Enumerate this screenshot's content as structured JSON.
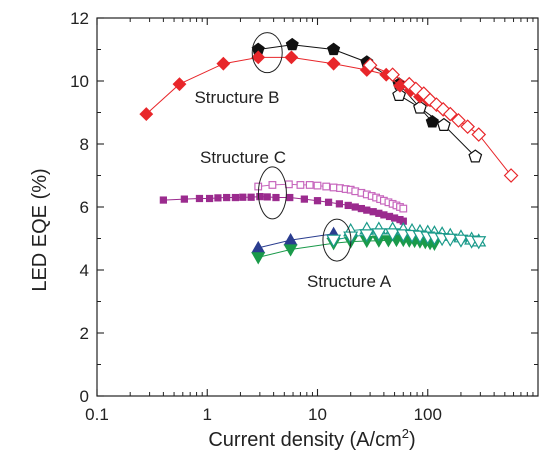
{
  "chart_data": {
    "type": "scatter",
    "title": "",
    "xlabel": "Current density (A/cm",
    "xlabel_superscript": "2",
    "xlabel_suffix": ")",
    "ylabel": "LED EQE (%)",
    "x_scale": "log",
    "xlim": [
      0.1,
      1000
    ],
    "ylim": [
      0,
      12
    ],
    "x_ticks": [
      0.1,
      1,
      10,
      100
    ],
    "x_tick_labels": [
      "0.1",
      "1",
      "10",
      "100"
    ],
    "y_ticks": [
      0,
      2,
      4,
      6,
      8,
      10,
      12
    ],
    "y_tick_labels": [
      "0",
      "2",
      "4",
      "6",
      "8",
      "10",
      "12"
    ],
    "grid": false,
    "legend": "none",
    "annotations": [
      {
        "text": "Structure B",
        "target_x": 3.5,
        "target_y": 10.9
      },
      {
        "text": "Structure C",
        "target_x": 3.9,
        "target_y": 6.45
      },
      {
        "text": "Structure A",
        "target_x": 15,
        "target_y": 4.95
      }
    ],
    "series": [
      {
        "marker": "pentagon",
        "filled": true,
        "color": "#111111",
        "x": [
          2.9,
          5.9,
          14,
          28,
          55,
          110
        ],
        "y": [
          11.0,
          11.15,
          11.0,
          10.6,
          9.9,
          8.7
        ]
      },
      {
        "marker": "pentagon",
        "filled": false,
        "color": "#111111",
        "x": [
          55,
          85,
          140,
          270
        ],
        "y": [
          9.55,
          9.15,
          8.6,
          7.6
        ]
      },
      {
        "marker": "diamond",
        "filled": true,
        "color": "#e8262a",
        "x": [
          0.28,
          0.56,
          1.4,
          2.9,
          5.8,
          14,
          28,
          42,
          56,
          70,
          85,
          100
        ],
        "y": [
          8.95,
          9.9,
          10.55,
          10.75,
          10.75,
          10.55,
          10.35,
          10.2,
          9.85,
          9.7,
          9.5,
          9.4
        ]
      },
      {
        "marker": "diamond",
        "filled": false,
        "color": "#e8262a",
        "x": [
          30,
          48,
          68,
          78,
          92,
          105,
          120,
          138,
          160,
          190,
          230,
          290,
          570
        ],
        "y": [
          10.5,
          10.2,
          9.9,
          9.75,
          9.6,
          9.4,
          9.25,
          9.1,
          8.95,
          8.75,
          8.55,
          8.3,
          7.0
        ]
      },
      {
        "marker": "square",
        "filled": true,
        "color": "#9b2b8e",
        "x": [
          0.4,
          0.62,
          0.85,
          1.05,
          1.25,
          1.5,
          1.8,
          2.1,
          2.5,
          3.0,
          3.5,
          4.2,
          5.6,
          7.6,
          10,
          12.6,
          15.8,
          19,
          22,
          25,
          28,
          32,
          36,
          40,
          45,
          50,
          56,
          60
        ],
        "y": [
          6.22,
          6.25,
          6.27,
          6.27,
          6.29,
          6.3,
          6.3,
          6.31,
          6.31,
          6.33,
          6.32,
          6.3,
          6.3,
          6.25,
          6.2,
          6.15,
          6.1,
          6.05,
          6.0,
          5.95,
          5.9,
          5.85,
          5.8,
          5.75,
          5.7,
          5.65,
          5.6,
          5.55
        ]
      },
      {
        "marker": "square",
        "filled": false,
        "color": "#c766bd",
        "x": [
          2.9,
          3.9,
          5.5,
          7.0,
          8.5,
          10,
          12,
          14,
          16,
          18,
          20,
          22,
          25,
          28,
          31,
          34,
          37,
          40,
          44,
          48,
          52,
          56,
          60
        ],
        "y": [
          6.65,
          6.7,
          6.72,
          6.7,
          6.7,
          6.68,
          6.65,
          6.62,
          6.6,
          6.57,
          6.55,
          6.5,
          6.45,
          6.4,
          6.35,
          6.3,
          6.25,
          6.2,
          6.15,
          6.1,
          6.05,
          6.0,
          5.95
        ]
      },
      {
        "marker": "triangle-up",
        "filled": true,
        "color": "#2a3d8f",
        "x": [
          2.9,
          5.7,
          14
        ],
        "y": [
          4.7,
          4.95,
          5.15
        ]
      },
      {
        "marker": "triangle-down",
        "filled": true,
        "color": "#1a9a4a",
        "x": [
          2.9,
          5.7,
          14,
          20,
          28,
          36,
          44,
          52,
          60,
          68,
          76,
          85,
          95,
          105,
          115
        ],
        "y": [
          4.4,
          4.65,
          4.85,
          4.9,
          4.92,
          4.93,
          4.94,
          4.95,
          4.95,
          4.93,
          4.92,
          4.9,
          4.88,
          4.85,
          4.83
        ]
      },
      {
        "marker": "triangle-up",
        "filled": false,
        "color": "#1a9a8a",
        "x": [
          20,
          28,
          36,
          48,
          60,
          72,
          85,
          100,
          115,
          135,
          160,
          200,
          250,
          290
        ],
        "y": [
          5.25,
          5.3,
          5.3,
          5.3,
          5.28,
          5.25,
          5.22,
          5.2,
          5.18,
          5.15,
          5.1,
          5.05,
          4.98,
          4.92
        ]
      },
      {
        "marker": "triangle-down",
        "filled": false,
        "color": "#1a9a8a",
        "x": [
          14,
          20,
          28,
          36,
          48,
          60,
          72,
          85,
          100,
          115,
          135,
          160,
          200,
          250,
          290
        ],
        "y": [
          4.95,
          5.05,
          5.12,
          5.15,
          5.15,
          5.12,
          5.1,
          5.08,
          5.05,
          5.02,
          5.0,
          4.98,
          4.95,
          4.92,
          4.9
        ]
      }
    ]
  }
}
